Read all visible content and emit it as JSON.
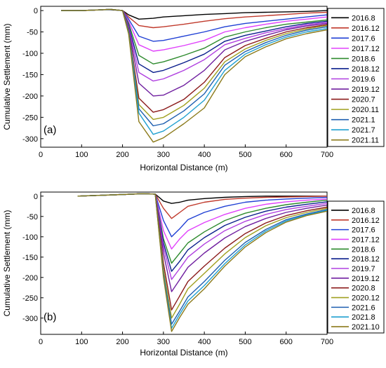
{
  "chart_data": [
    {
      "type": "line",
      "panel_label": "(a)",
      "xlabel": "Horizontal Distance (m)",
      "ylabel": "Cumulative Settlement (mm)",
      "xlim": [
        0,
        700
      ],
      "ylim": [
        -320,
        10
      ],
      "xticks": [
        0,
        100,
        200,
        300,
        400,
        500,
        600,
        700
      ],
      "yticks": [
        0,
        -50,
        -100,
        -150,
        -200,
        -250,
        -300
      ],
      "legend_position": "right",
      "x": [
        50,
        100,
        150,
        170,
        200,
        215,
        240,
        275,
        300,
        350,
        400,
        450,
        500,
        550,
        600,
        650,
        700
      ],
      "series": [
        {
          "name": "2016.8",
          "color": "#000000",
          "values": [
            0,
            0,
            2,
            2,
            0,
            -10,
            -20,
            -18,
            -15,
            -12,
            -9,
            -7,
            -5,
            -4,
            -3,
            -2,
            0
          ]
        },
        {
          "name": "2016.12",
          "color": "#c0392b",
          "values": [
            0,
            0,
            2,
            3,
            0,
            -15,
            -35,
            -40,
            -38,
            -32,
            -25,
            -19,
            -15,
            -12,
            -9,
            -6,
            -4
          ]
        },
        {
          "name": "2017.6",
          "color": "#1f3fd4",
          "values": [
            0,
            0,
            2,
            3,
            0,
            -20,
            -60,
            -72,
            -70,
            -60,
            -50,
            -38,
            -30,
            -25,
            -20,
            -15,
            -10
          ]
        },
        {
          "name": "2017.12",
          "color": "#e040fb",
          "values": [
            0,
            0,
            2,
            3,
            0,
            -25,
            -80,
            -95,
            -92,
            -82,
            -70,
            -50,
            -40,
            -32,
            -25,
            -20,
            -15
          ]
        },
        {
          "name": "2018.6",
          "color": "#2e8b2e",
          "values": [
            0,
            0,
            2,
            3,
            0,
            -30,
            -105,
            -125,
            -120,
            -105,
            -88,
            -62,
            -50,
            -40,
            -32,
            -27,
            -22
          ]
        },
        {
          "name": "2018.12",
          "color": "#0a1e8c",
          "values": [
            0,
            0,
            2,
            3,
            0,
            -35,
            -125,
            -145,
            -140,
            -122,
            -102,
            -72,
            -58,
            -48,
            -38,
            -30,
            -25
          ]
        },
        {
          "name": "2019.6",
          "color": "#b040e0",
          "values": [
            0,
            0,
            2,
            3,
            0,
            -38,
            -145,
            -165,
            -160,
            -140,
            -115,
            -80,
            -65,
            -52,
            -42,
            -33,
            -28
          ]
        },
        {
          "name": "2019.12",
          "color": "#7020a0",
          "values": [
            0,
            0,
            2,
            3,
            0,
            -42,
            -170,
            -200,
            -198,
            -175,
            -140,
            -92,
            -72,
            -58,
            -45,
            -36,
            -30
          ]
        },
        {
          "name": "2020.7",
          "color": "#8b1a1a",
          "values": [
            0,
            0,
            2,
            3,
            0,
            -46,
            -205,
            -238,
            -232,
            -208,
            -168,
            -110,
            -82,
            -65,
            -50,
            -40,
            -33
          ]
        },
        {
          "name": "2020.11",
          "color": "#a0a020",
          "values": [
            0,
            0,
            2,
            3,
            0,
            -48,
            -220,
            -255,
            -250,
            -222,
            -182,
            -120,
            -90,
            -70,
            -54,
            -43,
            -35
          ]
        },
        {
          "name": "2021.1",
          "color": "#1e5fb0",
          "values": [
            0,
            0,
            2,
            3,
            0,
            -50,
            -230,
            -270,
            -265,
            -235,
            -195,
            -128,
            -96,
            -75,
            -58,
            -46,
            -38
          ]
        },
        {
          "name": "2021.7",
          "color": "#20a0d0",
          "values": [
            0,
            0,
            2,
            3,
            0,
            -52,
            -240,
            -290,
            -282,
            -250,
            -210,
            -140,
            -102,
            -80,
            -62,
            -50,
            -42
          ]
        },
        {
          "name": "2021.11",
          "color": "#8b7a1a",
          "values": [
            0,
            0,
            2,
            3,
            0,
            -55,
            -260,
            -308,
            -298,
            -265,
            -228,
            -150,
            -108,
            -85,
            -66,
            -54,
            -45
          ]
        }
      ]
    },
    {
      "type": "line",
      "panel_label": "(b)",
      "xlabel": "Horizontal Distance (m)",
      "ylabel": "Cumulative Settlement (mm)",
      "xlim": [
        0,
        700
      ],
      "ylim": [
        -340,
        10
      ],
      "xticks": [
        0,
        100,
        200,
        300,
        400,
        500,
        600,
        700
      ],
      "yticks": [
        0,
        -50,
        -100,
        -150,
        -200,
        -250,
        -300
      ],
      "legend_position": "right",
      "x": [
        90,
        150,
        200,
        250,
        280,
        300,
        320,
        340,
        360,
        400,
        450,
        500,
        550,
        600,
        650,
        700
      ],
      "series": [
        {
          "name": "2016.8",
          "color": "#000000",
          "values": [
            0,
            2,
            4,
            6,
            5,
            -12,
            -18,
            -15,
            -10,
            -6,
            -3,
            -1,
            0,
            0,
            0,
            0
          ]
        },
        {
          "name": "2016.12",
          "color": "#c0392b",
          "values": [
            0,
            2,
            4,
            6,
            5,
            -30,
            -55,
            -40,
            -25,
            -15,
            -8,
            -5,
            -3,
            -2,
            -1,
            0
          ]
        },
        {
          "name": "2017.6",
          "color": "#1f3fd4",
          "values": [
            0,
            2,
            4,
            6,
            5,
            -60,
            -100,
            -80,
            -58,
            -40,
            -25,
            -15,
            -10,
            -7,
            -5,
            -3
          ]
        },
        {
          "name": "2017.12",
          "color": "#e040fb",
          "values": [
            0,
            2,
            4,
            6,
            5,
            -85,
            -130,
            -105,
            -85,
            -65,
            -45,
            -30,
            -20,
            -14,
            -10,
            -7
          ]
        },
        {
          "name": "2018.6",
          "color": "#2e8b2e",
          "values": [
            0,
            2,
            4,
            6,
            5,
            -105,
            -165,
            -140,
            -115,
            -88,
            -60,
            -42,
            -30,
            -21,
            -15,
            -10
          ]
        },
        {
          "name": "2018.12",
          "color": "#0a1e8c",
          "values": [
            0,
            2,
            4,
            6,
            5,
            -115,
            -185,
            -160,
            -132,
            -102,
            -72,
            -52,
            -37,
            -27,
            -20,
            -14
          ]
        },
        {
          "name": "2019.7",
          "color": "#b040e0",
          "values": [
            0,
            2,
            4,
            6,
            5,
            -125,
            -205,
            -178,
            -150,
            -118,
            -85,
            -62,
            -45,
            -33,
            -25,
            -18
          ]
        },
        {
          "name": "2019.12",
          "color": "#7020a0",
          "values": [
            0,
            2,
            4,
            6,
            5,
            -140,
            -235,
            -205,
            -175,
            -140,
            -103,
            -75,
            -55,
            -40,
            -30,
            -22
          ]
        },
        {
          "name": "2020.8",
          "color": "#8b1a1a",
          "values": [
            0,
            2,
            4,
            6,
            5,
            -165,
            -280,
            -245,
            -210,
            -172,
            -128,
            -92,
            -66,
            -48,
            -36,
            -27
          ]
        },
        {
          "name": "2020.12",
          "color": "#a0a020",
          "values": [
            0,
            2,
            4,
            6,
            5,
            -180,
            -300,
            -265,
            -228,
            -190,
            -142,
            -102,
            -73,
            -53,
            -40,
            -30
          ]
        },
        {
          "name": "2021.6",
          "color": "#1e5fb0",
          "values": [
            0,
            2,
            4,
            6,
            5,
            -190,
            -315,
            -282,
            -248,
            -210,
            -158,
            -114,
            -82,
            -58,
            -44,
            -33
          ]
        },
        {
          "name": "2021.8",
          "color": "#20a0d0",
          "values": [
            0,
            2,
            4,
            6,
            5,
            -195,
            -325,
            -290,
            -258,
            -220,
            -166,
            -120,
            -86,
            -61,
            -46,
            -35
          ]
        },
        {
          "name": "2021.10",
          "color": "#8b7a1a",
          "values": [
            0,
            2,
            4,
            6,
            5,
            -200,
            -333,
            -298,
            -266,
            -228,
            -172,
            -125,
            -90,
            -64,
            -48,
            -37
          ]
        }
      ]
    }
  ]
}
